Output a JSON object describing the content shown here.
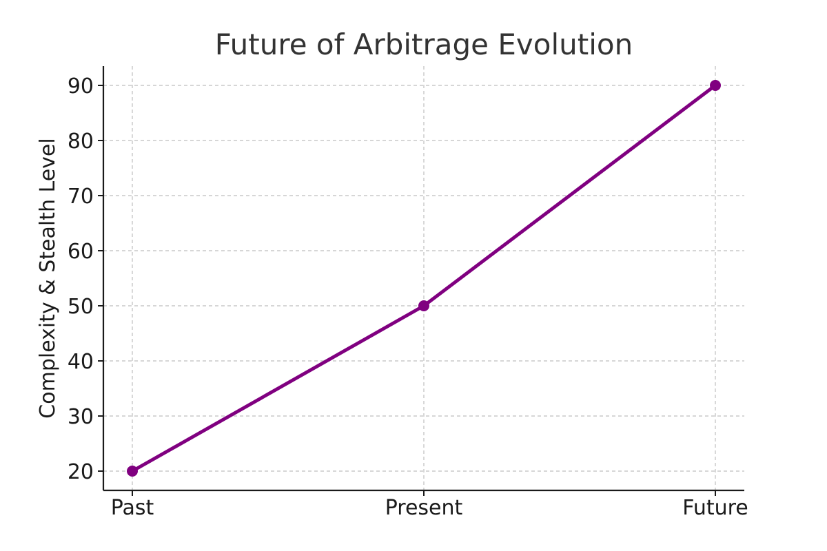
{
  "chart_data": {
    "type": "line",
    "title": "Future of Arbitrage Evolution",
    "xlabel": "",
    "ylabel": "Complexity & Stealth Level",
    "categories": [
      "Past",
      "Present",
      "Future"
    ],
    "series": [
      {
        "values": [
          20,
          50,
          90
        ],
        "color": "#800080"
      }
    ],
    "ylim": [
      16.5,
      93.5
    ],
    "yticks": [
      20,
      30,
      40,
      50,
      60,
      70,
      80,
      90
    ],
    "grid": true
  }
}
